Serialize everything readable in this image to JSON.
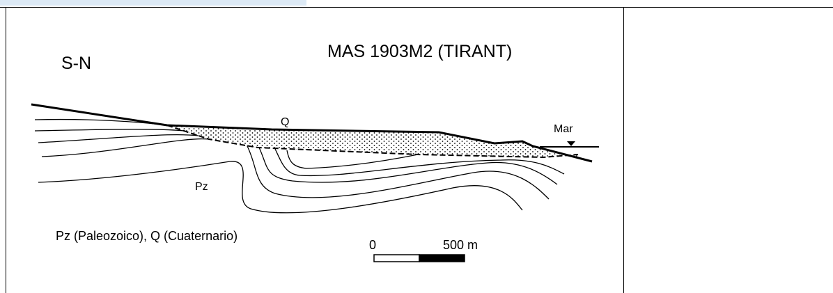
{
  "header": {
    "direction": "S-N",
    "title": "MAS 1903M2 (TIRANT)"
  },
  "labels": {
    "quaternary": "Q",
    "sea": "Mar",
    "paleozoic": "Pz",
    "legend": "Pz (Paleozoico), Q (Cuaternario)"
  },
  "scale": {
    "start": "0",
    "end": "500 m"
  }
}
